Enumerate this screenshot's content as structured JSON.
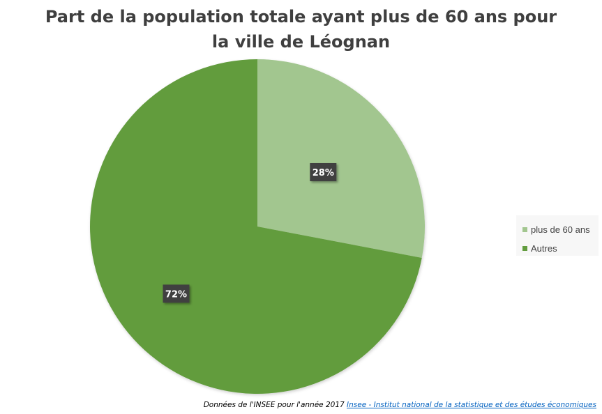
{
  "chart_data": {
    "type": "pie",
    "title_lines": [
      "Part de la population totale ayant plus de 60 ans pour",
      "la ville de Léognan"
    ],
    "slices": [
      {
        "name": "plus de 60 ans",
        "value": 28,
        "label": "28%",
        "color": "#a2c68f"
      },
      {
        "name": "Autres",
        "value": 72,
        "label": "72%",
        "color": "#629c3e"
      }
    ],
    "legend_placement": "right"
  },
  "footer": {
    "source_text": "Données de l'INSEE pour l'année 2017",
    "link_text": "Insee - Institut national de la statistique et des études économiques"
  }
}
